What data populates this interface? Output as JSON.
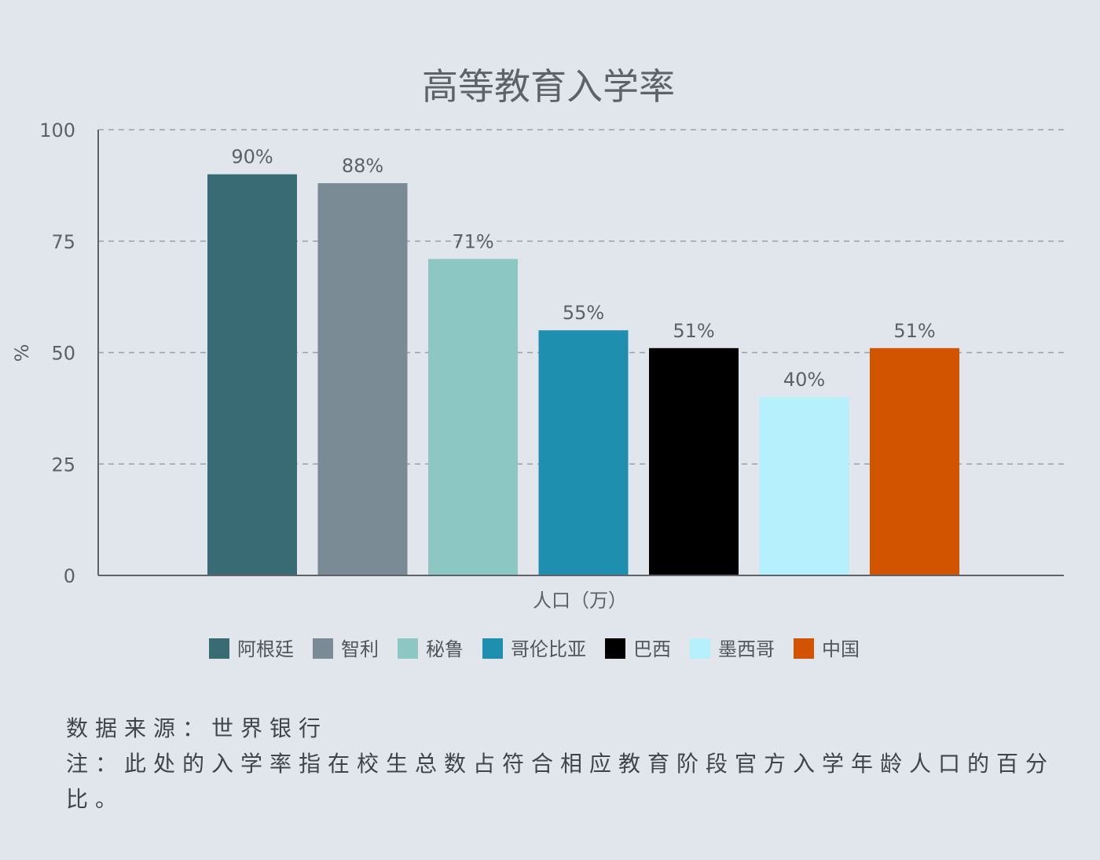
{
  "chart_data": {
    "type": "bar",
    "title": "高等教育入学率",
    "ylabel": "%",
    "xlabel": "人口（万）",
    "ylim": [
      0,
      100
    ],
    "yticks": [
      0,
      25,
      50,
      75,
      100
    ],
    "grid": true,
    "legend_position": "bottom",
    "categories": [
      "阿根廷",
      "智利",
      "秘鲁",
      "哥伦比亚",
      "巴西",
      "墨西哥",
      "中国"
    ],
    "values": [
      90,
      88,
      71,
      55,
      51,
      40,
      51
    ],
    "data_labels": [
      "90%",
      "88%",
      "71%",
      "55%",
      "51%",
      "40%",
      "51%"
    ],
    "colors": [
      "#386b73",
      "#7a8b95",
      "#8cc7c3",
      "#1f8fb0",
      "#000000",
      "#b5f0fc",
      "#d35400"
    ]
  },
  "footer": {
    "source": "数据来源：世界银行",
    "note": "注：此处的入学率指在校生总数占符合相应教育阶段官方入学年龄人口的百分比。"
  }
}
